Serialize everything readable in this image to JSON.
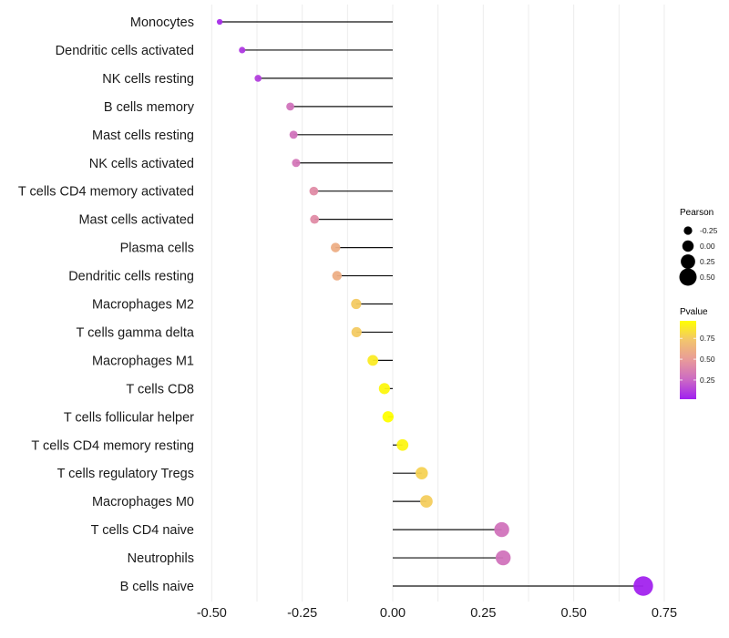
{
  "chart_data": {
    "type": "lollipop",
    "title": "",
    "xlabel": "",
    "ylabel": "",
    "xlim": [
      -0.52,
      0.76
    ],
    "xticks": [
      -0.5,
      -0.25,
      0.0,
      0.25,
      0.5,
      0.75
    ],
    "xtick_labels": [
      "-0.50",
      "-0.25",
      "0.00",
      "0.25",
      "0.50",
      "0.75"
    ],
    "grid": true,
    "categories": [
      "Monocytes",
      "Dendritic cells activated",
      "NK cells resting",
      "B cells memory",
      "Mast cells resting",
      "NK cells activated",
      "T cells CD4 memory activated",
      "Mast cells activated",
      "Plasma cells",
      "Dendritic cells resting",
      "Macrophages M2",
      "T cells gamma delta",
      "Macrophages M1",
      "T cells CD8",
      "T cells follicular helper",
      "T cells CD4 memory resting",
      "T cells regulatory  Tregs ",
      "Macrophages M0",
      "T cells CD4 naive",
      "Neutrophils",
      "B cells naive"
    ],
    "values": [
      -0.478,
      -0.416,
      -0.372,
      -0.283,
      -0.274,
      -0.267,
      -0.218,
      -0.216,
      -0.158,
      -0.154,
      -0.101,
      -0.1,
      -0.055,
      -0.023,
      -0.013,
      0.027,
      0.08,
      0.093,
      0.301,
      0.305,
      0.692
    ],
    "pvalues": [
      0.06,
      0.1,
      0.12,
      0.3,
      0.3,
      0.32,
      0.42,
      0.42,
      0.6,
      0.6,
      0.75,
      0.75,
      0.88,
      0.93,
      0.97,
      0.92,
      0.78,
      0.76,
      0.3,
      0.3,
      0.03
    ],
    "size_legend": {
      "title": "Pearson",
      "values": [
        -0.25,
        0.0,
        0.25,
        0.5
      ],
      "labels": [
        "-0.25",
        "0.00",
        "0.25",
        "0.50"
      ]
    },
    "color_legend": {
      "title": "Pvalue",
      "range": [
        0.02,
        0.96
      ],
      "ticks": [
        0.25,
        0.5,
        0.75
      ],
      "tick_labels": [
        "0.25",
        "0.50",
        "0.75"
      ],
      "colors": [
        "#a020f0",
        "#cc6ac4",
        "#e89a9a",
        "#f2c46e",
        "#ffff00"
      ]
    },
    "legend_position": "right"
  }
}
